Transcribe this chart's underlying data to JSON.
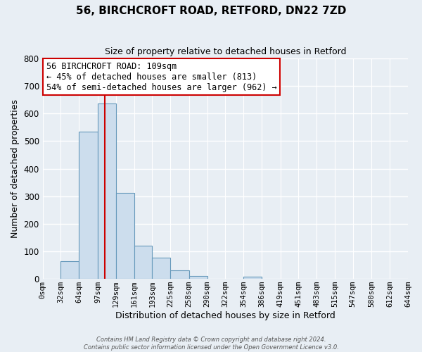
{
  "title": "56, BIRCHCROFT ROAD, RETFORD, DN22 7ZD",
  "subtitle": "Size of property relative to detached houses in Retford",
  "xlabel": "Distribution of detached houses by size in Retford",
  "ylabel": "Number of detached properties",
  "bin_edges": [
    0,
    32,
    64,
    97,
    129,
    161,
    193,
    225,
    258,
    290,
    322,
    354,
    386,
    419,
    451,
    483,
    515,
    547,
    580,
    612,
    644
  ],
  "bin_counts": [
    0,
    65,
    535,
    637,
    313,
    120,
    77,
    32,
    10,
    0,
    0,
    8,
    0,
    0,
    0,
    0,
    0,
    0,
    0,
    0
  ],
  "bar_color": "#ccdded",
  "bar_edge_color": "#6699bb",
  "vline_color": "#cc0000",
  "vline_x": 109,
  "ylim": [
    0,
    800
  ],
  "yticks": [
    0,
    100,
    200,
    300,
    400,
    500,
    600,
    700,
    800
  ],
  "annotation_title": "56 BIRCHCROFT ROAD: 109sqm",
  "annotation_line1": "← 45% of detached houses are smaller (813)",
  "annotation_line2": "54% of semi-detached houses are larger (962) →",
  "annotation_box_color": "#ffffff",
  "annotation_border_color": "#cc0000",
  "footer1": "Contains HM Land Registry data © Crown copyright and database right 2024.",
  "footer2": "Contains public sector information licensed under the Open Government Licence v3.0.",
  "tick_labels": [
    "0sqm",
    "32sqm",
    "64sqm",
    "97sqm",
    "129sqm",
    "161sqm",
    "193sqm",
    "225sqm",
    "258sqm",
    "290sqm",
    "322sqm",
    "354sqm",
    "386sqm",
    "419sqm",
    "451sqm",
    "483sqm",
    "515sqm",
    "547sqm",
    "580sqm",
    "612sqm",
    "644sqm"
  ],
  "background_color": "#e8eef4",
  "grid_color": "#ffffff",
  "title_fontsize": 11,
  "subtitle_fontsize": 9,
  "xlabel_fontsize": 9,
  "ylabel_fontsize": 9,
  "tick_fontsize": 7.5,
  "ytick_fontsize": 8.5,
  "annotation_fontsize": 8.5,
  "footer_fontsize": 6
}
